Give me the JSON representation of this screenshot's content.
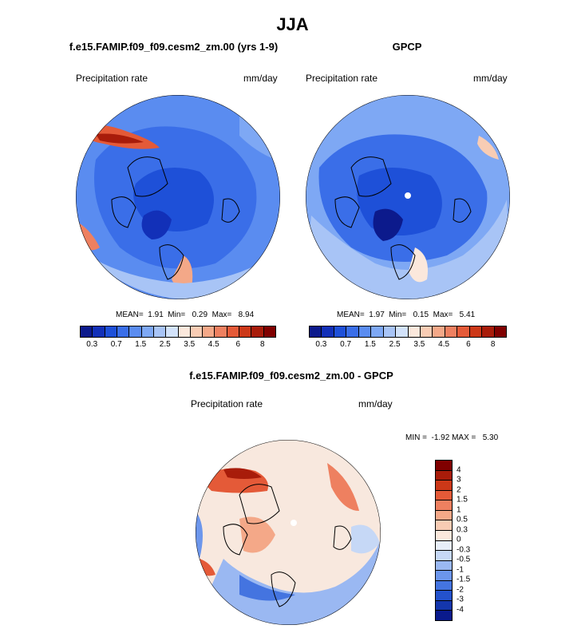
{
  "title": "JJA",
  "panels": [
    {
      "title": "f.e15.FAMIP.f09_f09.cesm2_zm.00 (yrs 1-9)",
      "left_label": "Precipitation rate",
      "right_label": "mm/day",
      "stats": "MEAN=  1.91  Min=   0.29  Max=   8.94",
      "base_color": "#5a8cf0"
    },
    {
      "title": "GPCP",
      "left_label": "Precipitation rate",
      "right_label": "mm/day",
      "stats": "MEAN=  1.97  Min=   0.15  Max=   5.41",
      "base_color": "#5a8cf0"
    },
    {
      "title": "f.e15.FAMIP.f09_f09.cesm2_zm.00 - GPCP",
      "left_label": "Precipitation rate",
      "right_label": "mm/day",
      "stats": "MIN =  -1.92 MAX =   5.30",
      "base_color": "#f6e6dc"
    }
  ],
  "abs_colorbar": {
    "labels": [
      "0.3",
      "0.7",
      "1.5",
      "2.5",
      "3.5",
      "4.5",
      "6",
      "8"
    ],
    "colors": [
      "#0c1a8c",
      "#1230b8",
      "#1e50d8",
      "#3a6ee8",
      "#5a8cf0",
      "#7ea8f4",
      "#a8c4f6",
      "#d2e2fa",
      "#fbe8dc",
      "#f8ccb4",
      "#f4a888",
      "#ee8060",
      "#e45a38",
      "#cc3818",
      "#a81c0a",
      "#800000"
    ]
  },
  "diff_colorbar": {
    "labels": [
      "4",
      "3",
      "2",
      "1.5",
      "1",
      "0.5",
      "0.3",
      "0",
      "-0.3",
      "-0.5",
      "-1",
      "-1.5",
      "-2",
      "-3",
      "-4"
    ],
    "colors": [
      "#800000",
      "#a81c0a",
      "#cc3818",
      "#e45a38",
      "#ee8060",
      "#f4a888",
      "#f8ccb4",
      "#fbe8dc",
      "#e8eef8",
      "#c6d8f6",
      "#9ab8f2",
      "#6c96ec",
      "#4474e0",
      "#2452cc",
      "#1436ac",
      "#0a1a8c"
    ]
  }
}
